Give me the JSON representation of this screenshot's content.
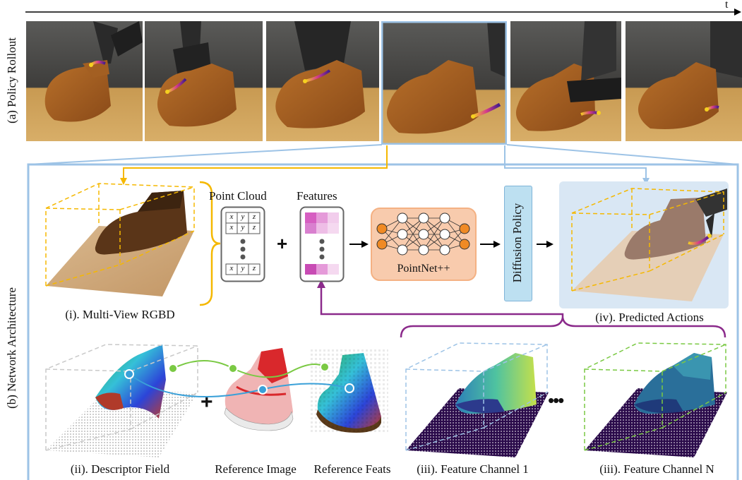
{
  "timeline": {
    "label": "t"
  },
  "rows": {
    "rollout_label": "(a) Policy Rollout",
    "arch_label": "(b) Network Architecture"
  },
  "blocks": {
    "point_cloud_title": "Point Cloud",
    "features_title": "Features",
    "pc_row_cells": [
      "x",
      "y",
      "z"
    ],
    "plus_symbol": "+",
    "pointnet_label": "PointNet++",
    "diffusion_label": "Diffusion Policy"
  },
  "captions": {
    "multiview": "(i). Multi-View RGBD",
    "predicted": "(iv). Predicted Actions",
    "descriptor": "(ii). Descriptor Field",
    "ref_image": "Reference Image",
    "ref_feats": "Reference Feats",
    "channel_1": "(iii). Feature Channel 1",
    "channel_n": "(iii). Feature Channel N",
    "ellipsis": "•••"
  },
  "colors": {
    "yellow": "#f5b800",
    "blue": "#9dc3e6",
    "purple": "#8b2a8b",
    "green": "#7ac943",
    "cyan": "#3aa0d8",
    "pointnet_fill": "#f4b183",
    "pointnet_node": "#f08a24",
    "diffusion_fill": "#bde0f1",
    "feature_pink": "#d65ec1",
    "feature_light": "#eebde6"
  }
}
